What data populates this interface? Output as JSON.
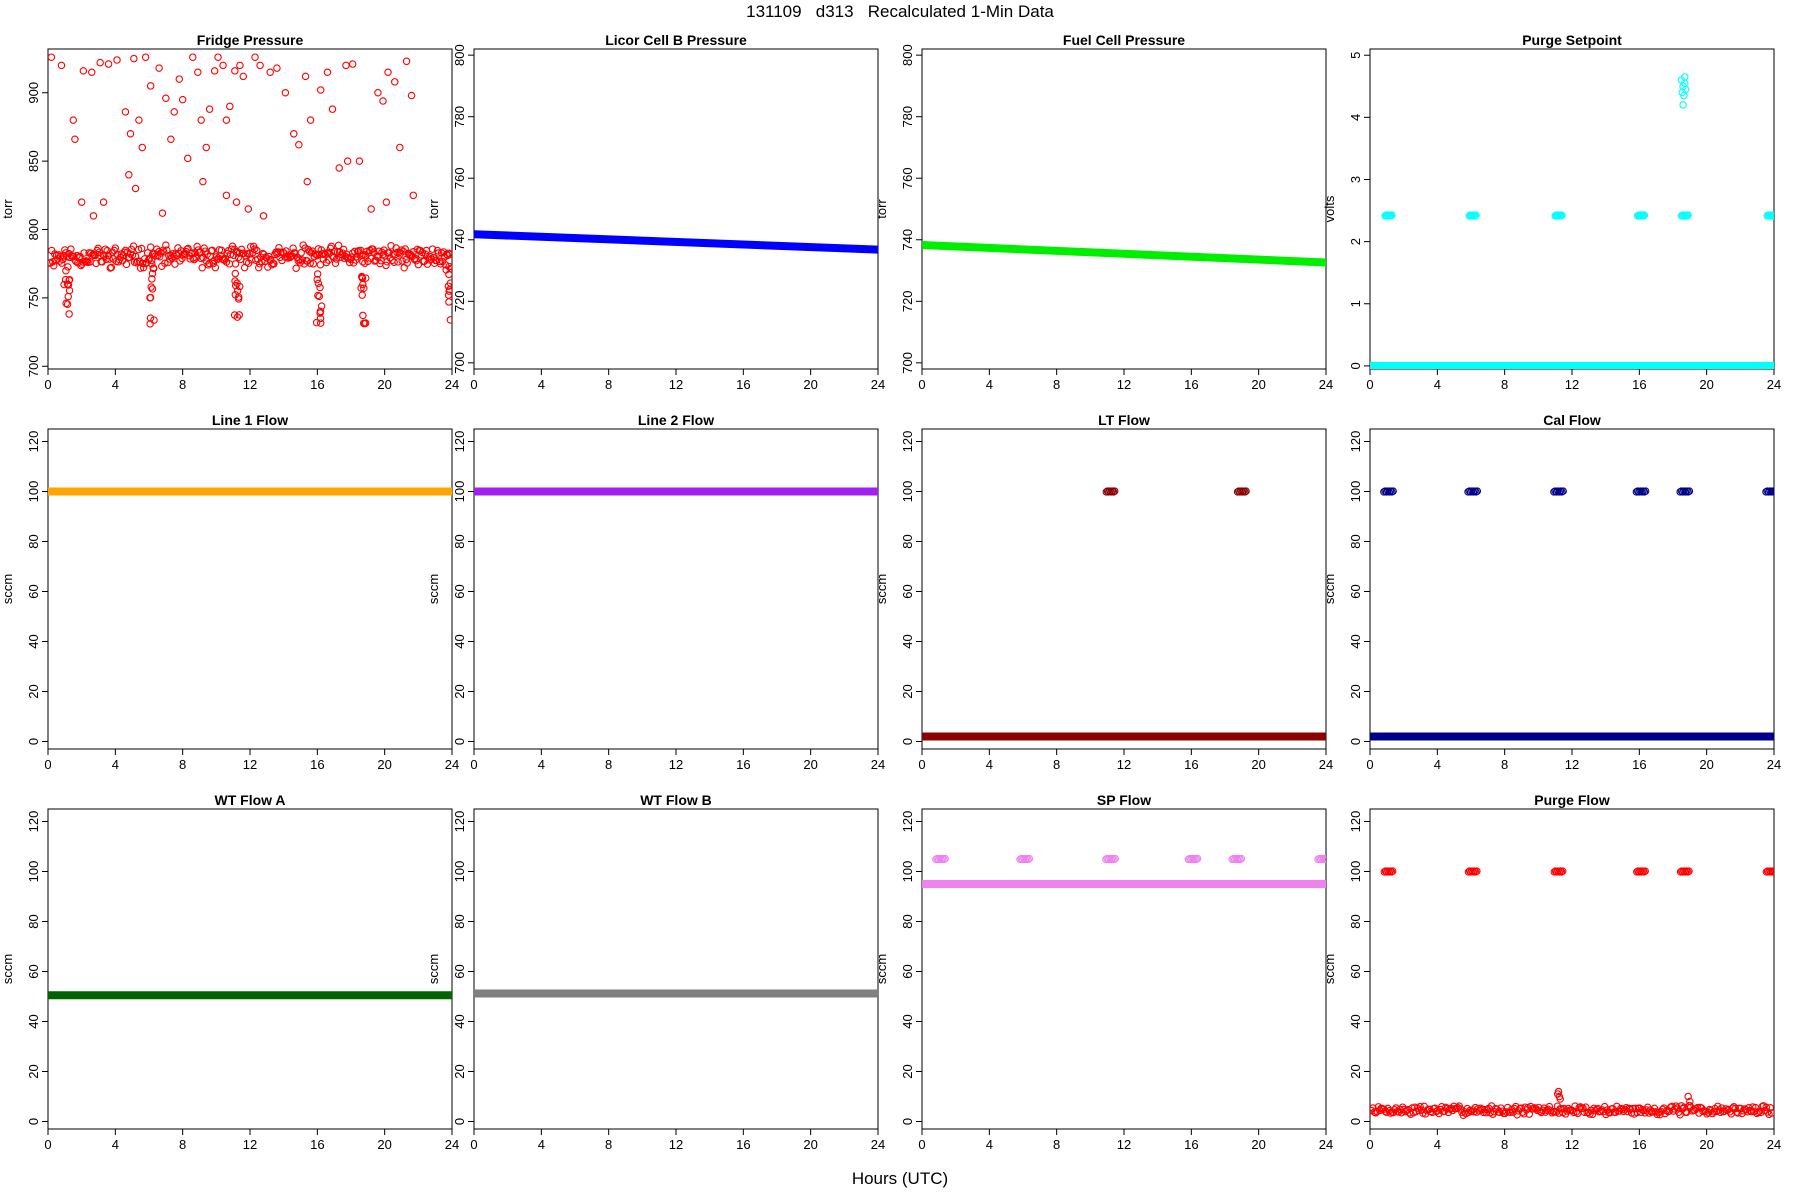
{
  "title": "131109   d313   Recalculated 1-Min Data",
  "xlabel": "Hours (UTC)",
  "chart_data": [
    {
      "type": "scatter",
      "title": "Fridge Pressure",
      "ylabel": "torr",
      "color": "#ff0000",
      "xlim": [
        0,
        24
      ],
      "xticks": [
        0,
        4,
        8,
        12,
        16,
        20,
        24
      ],
      "ylim": [
        698,
        932
      ],
      "yticks": [
        700,
        750,
        800,
        850,
        900
      ],
      "series": [
        {
          "kind": "noisy",
          "level": 780,
          "noise": 6,
          "step": 0.06,
          "seed": 11
        },
        {
          "kind": "dips",
          "depth": 45,
          "centers": [
            1.1,
            6.1,
            11.2,
            16.1,
            18.7,
            23.8
          ]
        },
        {
          "kind": "scatter",
          "points": [
            [
              0.2,
              926
            ],
            [
              0.8,
              920
            ],
            [
              1.5,
              880
            ],
            [
              1.6,
              866
            ],
            [
              2.1,
              916
            ],
            [
              2.6,
              915
            ],
            [
              3.1,
              922
            ],
            [
              3.6,
              921
            ],
            [
              4.1,
              924
            ],
            [
              4.6,
              886
            ],
            [
              4.9,
              870
            ],
            [
              5.1,
              925
            ],
            [
              5.4,
              880
            ],
            [
              5.6,
              860
            ],
            [
              5.8,
              926
            ],
            [
              6.1,
              905
            ],
            [
              6.6,
              918
            ],
            [
              7.0,
              896
            ],
            [
              7.3,
              866
            ],
            [
              7.5,
              886
            ],
            [
              7.8,
              910
            ],
            [
              8.0,
              895
            ],
            [
              8.3,
              852
            ],
            [
              8.6,
              926
            ],
            [
              8.9,
              915
            ],
            [
              9.1,
              880
            ],
            [
              9.4,
              860
            ],
            [
              9.6,
              888
            ],
            [
              9.9,
              916
            ],
            [
              10.1,
              926
            ],
            [
              10.4,
              920
            ],
            [
              10.6,
              880
            ],
            [
              10.8,
              890
            ],
            [
              11.1,
              916
            ],
            [
              11.4,
              920
            ],
            [
              11.6,
              912
            ],
            [
              12.3,
              926
            ],
            [
              12.6,
              920
            ],
            [
              13.2,
              915
            ],
            [
              13.6,
              918
            ],
            [
              14.1,
              900
            ],
            [
              14.6,
              870
            ],
            [
              14.9,
              862
            ],
            [
              15.3,
              912
            ],
            [
              15.6,
              880
            ],
            [
              16.2,
              902
            ],
            [
              16.6,
              915
            ],
            [
              16.9,
              888
            ],
            [
              17.3,
              845
            ],
            [
              17.7,
              920
            ],
            [
              18.1,
              921
            ],
            [
              18.5,
              850
            ],
            [
              19.6,
              900
            ],
            [
              19.9,
              894
            ],
            [
              20.2,
              915
            ],
            [
              20.6,
              908
            ],
            [
              20.9,
              860
            ],
            [
              21.3,
              923
            ],
            [
              21.6,
              898
            ],
            [
              2.0,
              820
            ],
            [
              2.7,
              810
            ],
            [
              3.3,
              820
            ],
            [
              4.8,
              840
            ],
            [
              5.2,
              830
            ],
            [
              9.2,
              835
            ],
            [
              10.6,
              825
            ],
            [
              11.2,
              820
            ],
            [
              11.9,
              815
            ],
            [
              15.4,
              835
            ],
            [
              17.8,
              850
            ],
            [
              20.1,
              820
            ],
            [
              21.7,
              825
            ],
            [
              6.8,
              812
            ],
            [
              12.8,
              810
            ],
            [
              19.2,
              815
            ]
          ]
        }
      ]
    },
    {
      "type": "line",
      "title": "Licor Cell B Pressure",
      "ylabel": "torr",
      "color": "#0000ff",
      "xlim": [
        0,
        24
      ],
      "xticks": [
        0,
        4,
        8,
        12,
        16,
        20,
        24
      ],
      "ylim": [
        698,
        802
      ],
      "yticks": [
        700,
        720,
        740,
        760,
        780,
        800
      ],
      "series": [
        {
          "kind": "line",
          "x": [
            0,
            24
          ],
          "y": [
            741.8,
            736.8
          ]
        }
      ]
    },
    {
      "type": "line",
      "title": "Fuel Cell Pressure",
      "ylabel": "torr",
      "color": "#00ee00",
      "xlim": [
        0,
        24
      ],
      "xticks": [
        0,
        4,
        8,
        12,
        16,
        20,
        24
      ],
      "ylim": [
        698,
        802
      ],
      "yticks": [
        700,
        720,
        740,
        760,
        780,
        800
      ],
      "series": [
        {
          "kind": "line",
          "x": [
            0,
            24
          ],
          "y": [
            738.3,
            732.6
          ]
        }
      ]
    },
    {
      "type": "scatter",
      "title": "Purge Setpoint",
      "ylabel": "volts",
      "color": "#00ffff",
      "xlim": [
        0,
        24
      ],
      "xticks": [
        0,
        4,
        8,
        12,
        16,
        20,
        24
      ],
      "ylim": [
        -0.05,
        5.1
      ],
      "yticks": [
        0,
        1,
        2,
        3,
        4,
        5
      ],
      "series": [
        {
          "kind": "line",
          "x": [
            0,
            24
          ],
          "y": [
            0,
            0
          ]
        },
        {
          "kind": "cluster",
          "y": 2.42,
          "centers": [
            1.1,
            6.1,
            11.2,
            16.1,
            18.7,
            23.8
          ],
          "width": 0.4
        },
        {
          "kind": "scatter",
          "points": [
            [
              18.5,
              4.6
            ],
            [
              18.6,
              4.5
            ],
            [
              18.7,
              4.55
            ],
            [
              18.55,
              4.4
            ],
            [
              18.65,
              4.35
            ],
            [
              18.6,
              4.2
            ],
            [
              18.75,
              4.45
            ],
            [
              18.7,
              4.65
            ]
          ]
        }
      ]
    },
    {
      "type": "line",
      "title": "Line 1 Flow",
      "ylabel": "sccm",
      "color": "#ffa500",
      "xlim": [
        0,
        24
      ],
      "xticks": [
        0,
        4,
        8,
        12,
        16,
        20,
        24
      ],
      "ylim": [
        -3,
        125
      ],
      "yticks": [
        0,
        20,
        40,
        60,
        80,
        100,
        120
      ],
      "series": [
        {
          "kind": "line",
          "x": [
            0,
            24
          ],
          "y": [
            100,
            100
          ]
        }
      ]
    },
    {
      "type": "line",
      "title": "Line 2 Flow",
      "ylabel": "sccm",
      "color": "#a020f0",
      "xlim": [
        0,
        24
      ],
      "xticks": [
        0,
        4,
        8,
        12,
        16,
        20,
        24
      ],
      "ylim": [
        -3,
        125
      ],
      "yticks": [
        0,
        20,
        40,
        60,
        80,
        100,
        120
      ],
      "series": [
        {
          "kind": "line",
          "x": [
            0,
            24
          ],
          "y": [
            100,
            100
          ]
        }
      ]
    },
    {
      "type": "scatter",
      "title": "LT Flow",
      "ylabel": "sccm",
      "color": "#8b0000",
      "xlim": [
        0,
        24
      ],
      "xticks": [
        0,
        4,
        8,
        12,
        16,
        20,
        24
      ],
      "ylim": [
        -3,
        125
      ],
      "yticks": [
        0,
        20,
        40,
        60,
        80,
        100,
        120
      ],
      "series": [
        {
          "kind": "line",
          "x": [
            0,
            24
          ],
          "y": [
            2,
            2
          ]
        },
        {
          "kind": "cluster",
          "y": 100,
          "centers": [
            11.2,
            19.0
          ],
          "width": 0.5
        }
      ]
    },
    {
      "type": "scatter",
      "title": "Cal Flow",
      "ylabel": "sccm",
      "color": "#00008b",
      "xlim": [
        0,
        24
      ],
      "xticks": [
        0,
        4,
        8,
        12,
        16,
        20,
        24
      ],
      "ylim": [
        -3,
        125
      ],
      "yticks": [
        0,
        20,
        40,
        60,
        80,
        100,
        120
      ],
      "series": [
        {
          "kind": "line",
          "x": [
            0,
            24
          ],
          "y": [
            2,
            2
          ]
        },
        {
          "kind": "cluster",
          "y": 100,
          "centers": [
            1.1,
            6.1,
            11.2,
            16.1,
            18.7,
            23.8
          ],
          "width": 0.55
        }
      ]
    },
    {
      "type": "line",
      "title": "WT Flow A",
      "ylabel": "sccm",
      "color": "#006400",
      "xlim": [
        0,
        24
      ],
      "xticks": [
        0,
        4,
        8,
        12,
        16,
        20,
        24
      ],
      "ylim": [
        -3,
        125
      ],
      "yticks": [
        0,
        20,
        40,
        60,
        80,
        100,
        120
      ],
      "series": [
        {
          "kind": "line",
          "x": [
            0,
            24
          ],
          "y": [
            50.5,
            50.5
          ]
        }
      ]
    },
    {
      "type": "line",
      "title": "WT Flow B",
      "ylabel": "sccm",
      "color": "#7f7f7f",
      "xlim": [
        0,
        24
      ],
      "xticks": [
        0,
        4,
        8,
        12,
        16,
        20,
        24
      ],
      "ylim": [
        -3,
        125
      ],
      "yticks": [
        0,
        20,
        40,
        60,
        80,
        100,
        120
      ],
      "series": [
        {
          "kind": "line",
          "x": [
            0,
            24
          ],
          "y": [
            51.2,
            51.2
          ]
        }
      ]
    },
    {
      "type": "scatter",
      "title": "SP Flow",
      "ylabel": "sccm",
      "color": "#ee82ee",
      "xlim": [
        0,
        24
      ],
      "xticks": [
        0,
        4,
        8,
        12,
        16,
        20,
        24
      ],
      "ylim": [
        -3,
        125
      ],
      "yticks": [
        0,
        20,
        40,
        60,
        80,
        100,
        120
      ],
      "series": [
        {
          "kind": "line",
          "x": [
            0,
            24
          ],
          "y": [
            95,
            95
          ]
        },
        {
          "kind": "cluster",
          "y": 105,
          "centers": [
            1.1,
            6.1,
            11.2,
            16.1,
            18.7,
            23.8
          ],
          "width": 0.55
        }
      ]
    },
    {
      "type": "scatter",
      "title": "Purge Flow",
      "ylabel": "sccm",
      "color": "#ff0000",
      "xlim": [
        0,
        24
      ],
      "xticks": [
        0,
        4,
        8,
        12,
        16,
        20,
        24
      ],
      "ylim": [
        -3,
        125
      ],
      "yticks": [
        0,
        20,
        40,
        60,
        80,
        100,
        120
      ],
      "series": [
        {
          "kind": "noisy",
          "level": 4.5,
          "noise": 1.4,
          "step": 0.08,
          "seed": 7
        },
        {
          "kind": "cluster",
          "y": 100,
          "centers": [
            1.1,
            6.1,
            11.2,
            16.1,
            18.7,
            23.8
          ],
          "width": 0.5
        },
        {
          "kind": "scatter",
          "points": [
            [
              11.2,
              12
            ],
            [
              11.25,
              10
            ],
            [
              11.3,
              9
            ],
            [
              18.9,
              10
            ],
            [
              19.0,
              8
            ],
            [
              11.15,
              11
            ]
          ]
        }
      ]
    }
  ]
}
